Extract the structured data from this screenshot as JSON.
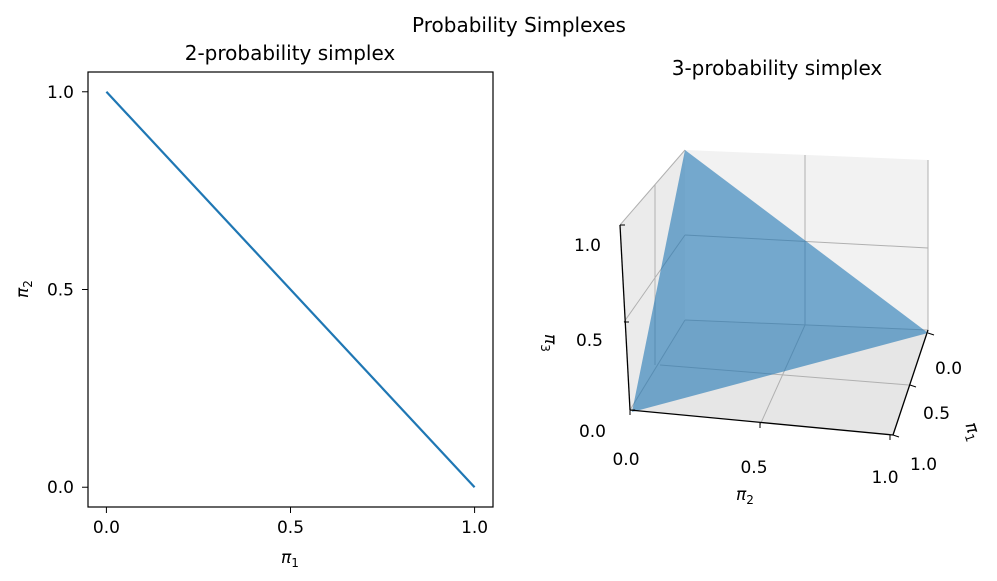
{
  "figure": {
    "title": "Probability Simplexes"
  },
  "chart_data": [
    {
      "type": "line",
      "title": "2-probability simplex",
      "xlabel": "π",
      "xlabel_sub": "1",
      "ylabel": "π",
      "ylabel_sub": "2",
      "xlim": [
        -0.05,
        1.05
      ],
      "ylim": [
        -0.05,
        1.05
      ],
      "xticks": [
        0.0,
        0.5,
        1.0
      ],
      "xtick_labels": [
        "0.0",
        "0.5",
        "1.0"
      ],
      "yticks": [
        0.0,
        0.5,
        1.0
      ],
      "ytick_labels": [
        "0.0",
        "0.5",
        "1.0"
      ],
      "grid": false,
      "series": [
        {
          "x": [
            0.0,
            1.0
          ],
          "y": [
            1.0,
            0.0
          ],
          "color": "#1f77b4"
        }
      ]
    },
    {
      "type": "surface3d",
      "title": "3-probability simplex",
      "xlabel": "π",
      "xlabel_sub": "1",
      "ylabel": "π",
      "ylabel_sub": "2",
      "zlabel": "π",
      "zlabel_sub": "3",
      "xticks": [
        0.0,
        0.5,
        1.0
      ],
      "xtick_labels": [
        "0.0",
        "0.5",
        "1.0"
      ],
      "yticks": [
        0.0,
        0.5,
        1.0
      ],
      "ytick_labels": [
        "0.0",
        "0.5",
        "1.0"
      ],
      "zticks": [
        0.0,
        0.5,
        1.0
      ],
      "ztick_labels": [
        "0.0",
        "0.5",
        "1.0"
      ],
      "grid": true,
      "surface": {
        "vertices": [
          [
            1,
            0,
            0
          ],
          [
            0,
            1,
            0
          ],
          [
            0,
            0,
            1
          ]
        ],
        "color": "#1f77b4",
        "alpha": 0.6
      }
    }
  ]
}
